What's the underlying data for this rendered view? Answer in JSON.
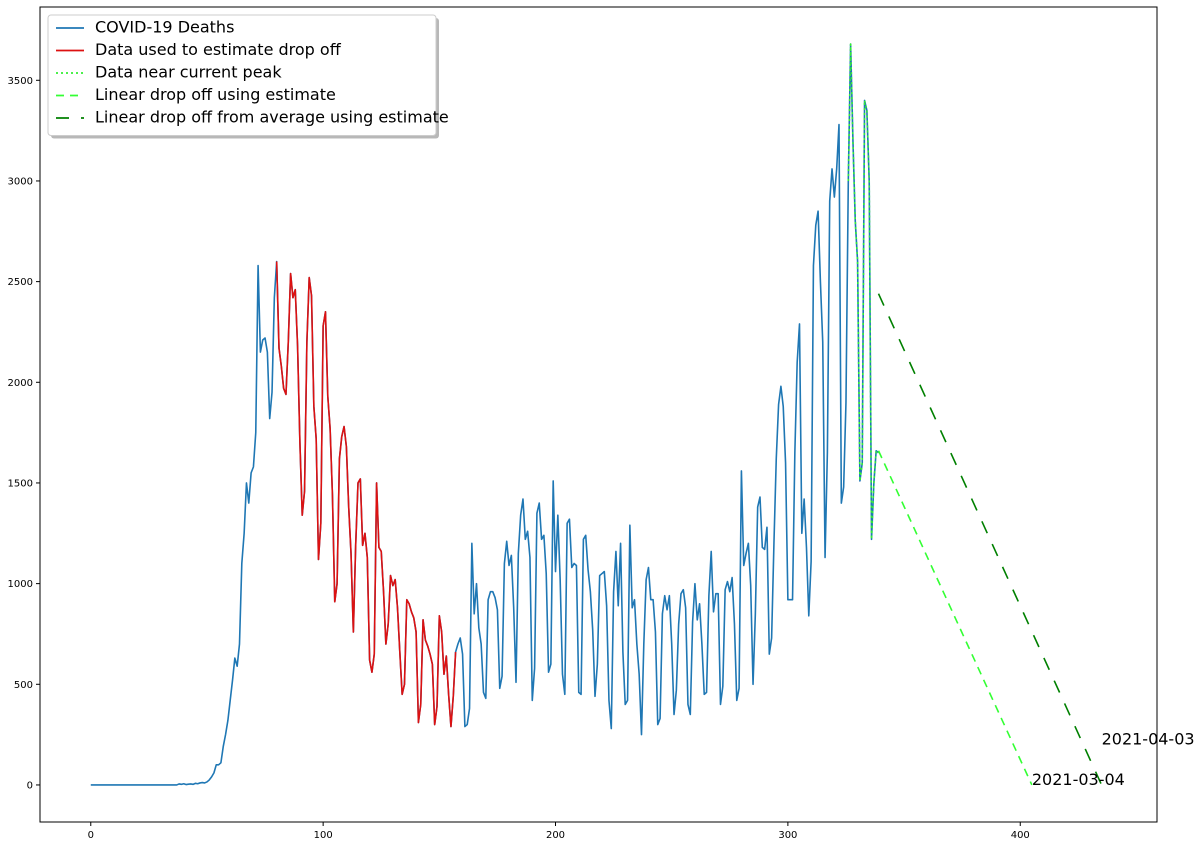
{
  "chart_data": {
    "type": "line",
    "xlim": [
      -21.85,
      458.85
    ],
    "ylim": [
      -184,
      3864
    ],
    "xticks": [
      0,
      100,
      200,
      300,
      400
    ],
    "yticks": [
      0,
      500,
      1000,
      1500,
      2000,
      2500,
      3000,
      3500
    ],
    "legend": "upper left",
    "series": [
      {
        "name": "COVID-19 Deaths",
        "color": "#1f77b4",
        "dash": "solid",
        "x": [
          0,
          1,
          2,
          3,
          4,
          5,
          6,
          7,
          8,
          9,
          10,
          11,
          12,
          13,
          14,
          15,
          16,
          17,
          18,
          19,
          20,
          21,
          22,
          23,
          24,
          25,
          26,
          27,
          28,
          29,
          30,
          31,
          32,
          33,
          34,
          35,
          36,
          37,
          38,
          39,
          40,
          41,
          42,
          43,
          44,
          45,
          46,
          47,
          48,
          49,
          50,
          51,
          52,
          53,
          54,
          55,
          56,
          57,
          58,
          59,
          60,
          61,
          62,
          63,
          64,
          65,
          66,
          67,
          68,
          69,
          70,
          71,
          72,
          73,
          74,
          75,
          76,
          77,
          78,
          79,
          80,
          81,
          82,
          83,
          84,
          85,
          86,
          87,
          88,
          89,
          90,
          91,
          92,
          93,
          94,
          95,
          96,
          97,
          98,
          99,
          100,
          101,
          102,
          103,
          104,
          105,
          106,
          107,
          108,
          109,
          110,
          111,
          112,
          113,
          114,
          115,
          116,
          117,
          118,
          119,
          120,
          121,
          122,
          123,
          124,
          125,
          126,
          127,
          128,
          129,
          130,
          131,
          132,
          133,
          134,
          135,
          136,
          137,
          138,
          139,
          140,
          141,
          142,
          143,
          144,
          145,
          146,
          147,
          148,
          149,
          150,
          151,
          152,
          153,
          154,
          155,
          156,
          157,
          158,
          159,
          160,
          161,
          162,
          163,
          164,
          165,
          166,
          167,
          168,
          169,
          170,
          171,
          172,
          173,
          174,
          175,
          176,
          177,
          178,
          179,
          180,
          181,
          182,
          183,
          184,
          185,
          186,
          187,
          188,
          189,
          190,
          191,
          192,
          193,
          194,
          195,
          196,
          197,
          198,
          199,
          200,
          201,
          202,
          203,
          204,
          205,
          206,
          207,
          208,
          209,
          210,
          211,
          212,
          213,
          214,
          215,
          216,
          217,
          218,
          219,
          220,
          221,
          222,
          223,
          224,
          225,
          226,
          227,
          228,
          229,
          230,
          231,
          232,
          233,
          234,
          235,
          236,
          237,
          238,
          239,
          240,
          241,
          242,
          243,
          244,
          245,
          246,
          247,
          248,
          249,
          250,
          251,
          252,
          253,
          254,
          255,
          256,
          257,
          258,
          259,
          260,
          261,
          262,
          263,
          264,
          265,
          266,
          267,
          268,
          269,
          270,
          271,
          272,
          273,
          274,
          275,
          276,
          277,
          278,
          279,
          280,
          281,
          282,
          283,
          284,
          285,
          286,
          287,
          288,
          289,
          290,
          291,
          292,
          293,
          294,
          295,
          296,
          297,
          298,
          299,
          300,
          301,
          302,
          303,
          304,
          305,
          306,
          307,
          308,
          309,
          310,
          311,
          312,
          313,
          314,
          315,
          316,
          317,
          318,
          319,
          320,
          321,
          322,
          323,
          324,
          325,
          326,
          327,
          328,
          329,
          330,
          331,
          332,
          333,
          334,
          335,
          336,
          337,
          338,
          339
        ],
        "values": [
          0,
          0,
          0,
          0,
          0,
          0,
          0,
          0,
          0,
          0,
          0,
          0,
          0,
          0,
          0,
          0,
          0,
          0,
          0,
          0,
          0,
          0,
          0,
          0,
          0,
          0,
          0,
          0,
          0,
          0,
          0,
          0,
          0,
          0,
          0,
          0,
          0,
          0,
          5,
          3,
          6,
          2,
          4,
          5,
          3,
          8,
          6,
          10,
          12,
          10,
          15,
          25,
          40,
          60,
          100,
          100,
          110,
          190,
          250,
          320,
          420,
          520,
          630,
          590,
          700,
          1100,
          1250,
          1500,
          1400,
          1550,
          1580,
          1750,
          2580,
          2150,
          2210,
          2220,
          2150,
          1820,
          1950,
          2420,
          2600,
          2170,
          2080,
          1970,
          1940,
          2200,
          2540,
          2420,
          2460,
          2180,
          1700,
          1340,
          1460,
          2200,
          2520,
          2430,
          1880,
          1720,
          1120,
          1300,
          2280,
          2350,
          1930,
          1770,
          1440,
          910,
          1000,
          1620,
          1730,
          1780,
          1680,
          1380,
          1150,
          760,
          1190,
          1500,
          1520,
          1190,
          1250,
          1130,
          620,
          560,
          650,
          1500,
          1180,
          1160,
          960,
          700,
          800,
          1040,
          990,
          1020,
          880,
          660,
          450,
          500,
          920,
          900,
          860,
          830,
          760,
          310,
          400,
          820,
          720,
          690,
          650,
          600,
          300,
          390,
          840,
          760,
          550,
          640,
          450,
          290,
          440,
          660,
          700,
          730,
          650,
          290,
          300,
          380,
          1200,
          850,
          1000,
          780,
          700,
          460,
          430,
          920,
          960,
          960,
          930,
          870,
          480,
          540,
          1100,
          1210,
          1090,
          1140,
          880,
          510,
          1150,
          1340,
          1420,
          1220,
          1260,
          1130,
          420,
          580,
          1350,
          1400,
          1220,
          1240,
          1050,
          560,
          600,
          1510,
          1060,
          1340,
          1020,
          550,
          450,
          1300,
          1320,
          1080,
          1100,
          1090,
          460,
          450,
          1220,
          1240,
          1070,
          960,
          770,
          440,
          600,
          1040,
          1050,
          1060,
          890,
          420,
          280,
          960,
          1160,
          890,
          1200,
          660,
          400,
          420,
          1290,
          880,
          920,
          700,
          550,
          250,
          700,
          1020,
          1080,
          920,
          920,
          760,
          300,
          330,
          850,
          940,
          870,
          940,
          700,
          350,
          470,
          800,
          950,
          970,
          880,
          400,
          350,
          810,
          1000,
          820,
          900,
          700,
          450,
          460,
          940,
          1160,
          860,
          950,
          950,
          400,
          490,
          970,
          1010,
          960,
          1030,
          800,
          420,
          480,
          1560,
          1090,
          1150,
          1200,
          990,
          500,
          850,
          1380,
          1430,
          1180,
          1170,
          1280,
          650,
          730,
          1200,
          1620,
          1890,
          1980,
          1880,
          1600,
          920,
          920,
          920,
          1650,
          2100,
          2290,
          1250,
          1420,
          1180,
          840,
          1110,
          2580,
          2780,
          2850,
          2500,
          2200,
          1130,
          1650,
          2900,
          3060,
          2920,
          3060,
          3280,
          1400,
          1480,
          1900,
          3000,
          3680,
          3200,
          2800,
          2600,
          1510,
          1600,
          3400,
          3350,
          3000,
          1220,
          1500,
          1660,
          1650
        ]
      },
      {
        "name": "Data used to estimate drop off",
        "color": "#dd1111",
        "dash": "solid",
        "x": [
          80,
          81,
          82,
          83,
          84,
          85,
          86,
          87,
          88,
          89,
          90,
          91,
          92,
          93,
          94,
          95,
          96,
          97,
          98,
          99,
          100,
          101,
          102,
          103,
          104,
          105,
          106,
          107,
          108,
          109,
          110,
          111,
          112,
          113,
          114,
          115,
          116,
          117,
          118,
          119,
          120,
          121,
          122,
          123,
          124,
          125,
          126,
          127,
          128,
          129,
          130,
          131,
          132,
          133,
          134,
          135,
          136,
          137,
          138,
          139,
          140,
          141,
          142,
          143,
          144,
          145,
          146,
          147,
          148,
          149,
          150,
          151,
          152,
          153,
          154,
          155,
          156,
          157
        ],
        "values": [
          2600,
          2170,
          2080,
          1970,
          1940,
          2200,
          2540,
          2420,
          2460,
          2180,
          1700,
          1340,
          1460,
          2200,
          2520,
          2430,
          1880,
          1720,
          1120,
          1300,
          2280,
          2350,
          1930,
          1770,
          1440,
          910,
          1000,
          1620,
          1730,
          1780,
          1680,
          1380,
          1150,
          760,
          1190,
          1500,
          1520,
          1190,
          1250,
          1130,
          620,
          560,
          650,
          1500,
          1180,
          1160,
          960,
          700,
          800,
          1040,
          990,
          1020,
          880,
          660,
          450,
          500,
          920,
          900,
          860,
          830,
          760,
          310,
          400,
          820,
          720,
          690,
          650,
          600,
          300,
          390,
          840,
          760,
          550,
          640,
          450,
          290,
          440,
          660
        ]
      },
      {
        "name": "Data near current peak",
        "color": "#33ee33",
        "dash": "dotted",
        "x": [
          326,
          327,
          328,
          329,
          330,
          331,
          332,
          333,
          334,
          335,
          336,
          337,
          338,
          339
        ],
        "values": [
          3000,
          3680,
          3200,
          2800,
          2600,
          1510,
          1600,
          3400,
          3350,
          3000,
          1220,
          1500,
          1660,
          1650
        ]
      },
      {
        "name": "Linear drop off using estimate",
        "color": "#33ff33",
        "dash": "dashed",
        "x": [
          339,
          405
        ],
        "values": [
          1660,
          0
        ]
      },
      {
        "name": "Linear drop off from average using estimate",
        "color": "#008000",
        "dash": "longdash",
        "x": [
          339,
          435
        ],
        "values": [
          2440,
          0
        ]
      }
    ],
    "annotations": [
      {
        "text": "2021-03-04",
        "x": 405,
        "y": 0
      },
      {
        "text": "2021-04-03",
        "x": 435,
        "y": 200
      }
    ]
  }
}
